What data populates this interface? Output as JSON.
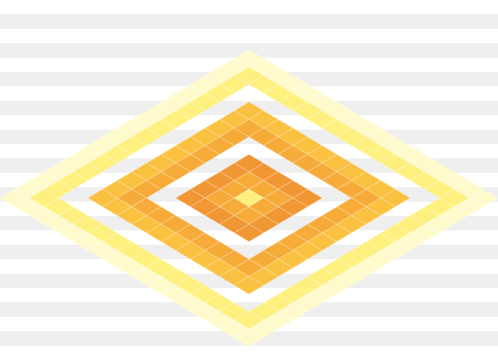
{
  "chart_data": {
    "type": "heatmap",
    "grid": false,
    "tick_labels": false,
    "cells": [
      [
        2,
        2,
        2,
        2,
        2,
        2,
        2,
        2,
        2,
        2,
        2,
        2,
        2,
        2,
        2,
        2,
        2
      ],
      [
        2,
        4,
        4,
        4,
        4,
        4,
        4,
        4,
        4,
        4,
        4,
        4,
        4,
        4,
        4,
        4,
        2
      ],
      [
        2,
        4,
        null,
        null,
        null,
        null,
        null,
        null,
        null,
        null,
        null,
        null,
        null,
        null,
        null,
        4,
        2
      ],
      [
        2,
        4,
        null,
        7,
        7,
        7,
        7,
        7,
        7,
        7,
        7,
        7,
        7,
        7,
        null,
        4,
        2
      ],
      [
        2,
        4,
        null,
        7,
        8,
        8,
        8,
        8,
        8,
        8,
        8,
        8,
        8,
        7,
        null,
        4,
        2
      ],
      [
        2,
        4,
        null,
        7,
        8,
        null,
        null,
        null,
        null,
        null,
        null,
        null,
        8,
        7,
        null,
        4,
        2
      ],
      [
        2,
        4,
        null,
        7,
        8,
        null,
        9,
        9,
        9,
        9,
        9,
        null,
        8,
        7,
        null,
        4,
        2
      ],
      [
        2,
        4,
        null,
        7,
        8,
        null,
        9,
        8,
        8,
        8,
        9,
        null,
        8,
        7,
        null,
        4,
        2
      ],
      [
        2,
        4,
        null,
        7,
        8,
        null,
        9,
        8,
        4,
        8,
        9,
        null,
        8,
        7,
        null,
        4,
        2
      ],
      [
        2,
        4,
        null,
        7,
        8,
        null,
        9,
        8,
        8,
        8,
        9,
        null,
        8,
        7,
        null,
        4,
        2
      ],
      [
        2,
        4,
        null,
        7,
        8,
        null,
        9,
        9,
        9,
        9,
        9,
        null,
        8,
        7,
        null,
        4,
        2
      ],
      [
        2,
        4,
        null,
        7,
        8,
        null,
        null,
        null,
        null,
        null,
        null,
        null,
        8,
        7,
        null,
        4,
        2
      ],
      [
        2,
        4,
        null,
        7,
        8,
        8,
        8,
        8,
        8,
        8,
        8,
        8,
        8,
        7,
        null,
        4,
        2
      ],
      [
        2,
        4,
        null,
        7,
        7,
        7,
        7,
        7,
        7,
        7,
        7,
        7,
        7,
        7,
        null,
        4,
        2
      ],
      [
        2,
        4,
        null,
        null,
        null,
        null,
        null,
        null,
        null,
        null,
        null,
        null,
        null,
        null,
        null,
        4,
        2
      ],
      [
        2,
        4,
        4,
        4,
        4,
        4,
        4,
        4,
        4,
        4,
        4,
        4,
        4,
        4,
        4,
        4,
        2
      ],
      [
        2,
        2,
        2,
        2,
        2,
        2,
        2,
        2,
        2,
        2,
        2,
        2,
        2,
        2,
        2,
        2,
        2
      ]
    ]
  }
}
